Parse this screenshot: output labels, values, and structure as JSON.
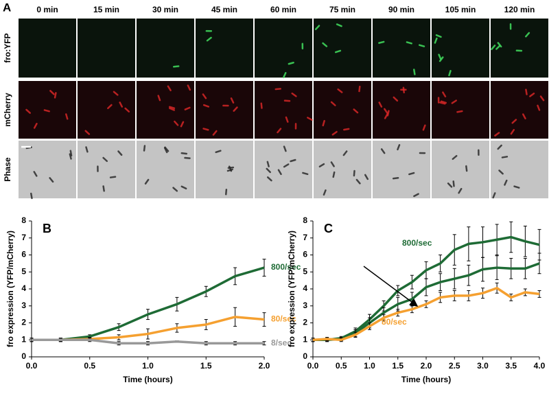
{
  "panel_a": {
    "letter": "A",
    "times": [
      "0 min",
      "15 min",
      "30 min",
      "45 min",
      "60 min",
      "75 min",
      "90 min",
      "105 min",
      "120 min"
    ],
    "rows": [
      "fro:YFP",
      "mCherry",
      "Phase"
    ]
  },
  "chart_data": [
    {
      "type": "line",
      "letter": "B",
      "xlabel": "Time (hours)",
      "ylabel": "fro expression (YFP/mCherry)",
      "x": [
        0,
        0.25,
        0.5,
        0.75,
        1.0,
        1.25,
        1.5,
        1.75,
        2.0
      ],
      "xlim": [
        0,
        2.0
      ],
      "xticks": [
        {
          "value": 0,
          "label": "0.0"
        },
        {
          "value": 0.5,
          "label": "0.5"
        },
        {
          "value": 1,
          "label": "1.0"
        },
        {
          "value": 1.5,
          "label": "1.5"
        },
        {
          "value": 2,
          "label": "2.0"
        }
      ],
      "ylim": [
        0,
        8
      ],
      "yticks": [
        0,
        1,
        2,
        3,
        4,
        5,
        6,
        7,
        8
      ],
      "grid": false,
      "series": [
        {
          "name": "800/sec",
          "color": "#1e6b35",
          "values": [
            1,
            1.0,
            1.2,
            1.75,
            2.5,
            3.1,
            3.85,
            4.75,
            5.25
          ],
          "errors": [
            0.1,
            0.1,
            0.1,
            0.2,
            0.3,
            0.4,
            0.3,
            0.5,
            0.5
          ]
        },
        {
          "name": "80/sec",
          "color": "#f5a030",
          "values": [
            1,
            1.0,
            1.05,
            1.15,
            1.35,
            1.7,
            1.9,
            2.35,
            2.2
          ],
          "errors": [
            0.1,
            0.1,
            0.1,
            0.15,
            0.3,
            0.25,
            0.3,
            0.55,
            0.4
          ]
        },
        {
          "name": "8/sec",
          "color": "#999999",
          "values": [
            1,
            1,
            1.0,
            0.8,
            0.8,
            0.9,
            0.8,
            0.8,
            0.8
          ],
          "errors": [
            0.1,
            0.1,
            0.1,
            0.1,
            0.1,
            0.05,
            0.1,
            0.1,
            0.1
          ]
        }
      ]
    },
    {
      "type": "line",
      "letter": "C",
      "xlabel": "Time (hours)",
      "ylabel": "fro expression (YFP/mCherry)",
      "x": [
        0,
        0.25,
        0.5,
        0.75,
        1.0,
        1.25,
        1.5,
        1.75,
        2.0,
        2.25,
        2.5,
        2.75,
        3.0,
        3.25,
        3.5,
        3.75,
        4.0
      ],
      "xlim": [
        0,
        4.0
      ],
      "xticks": [
        {
          "value": 0,
          "label": "0.0"
        },
        {
          "value": 0.5,
          "label": "0.5"
        },
        {
          "value": 1,
          "label": "1.0"
        },
        {
          "value": 1.5,
          "label": "1.5"
        },
        {
          "value": 2,
          "label": "2.0"
        },
        {
          "value": 2.5,
          "label": "2.5"
        },
        {
          "value": 3,
          "label": "3.0"
        },
        {
          "value": 3.5,
          "label": "3.5"
        },
        {
          "value": 4,
          "label": "4.0"
        }
      ],
      "ylim": [
        0,
        8
      ],
      "yticks": [
        0,
        1,
        2,
        3,
        4,
        5,
        6,
        7,
        8
      ],
      "grid": false,
      "series": [
        {
          "name": "800/sec",
          "color": "#1e6b35",
          "values": [
            1,
            1,
            1.1,
            1.5,
            2.2,
            3.0,
            3.9,
            4.4,
            5.1,
            5.5,
            6.3,
            6.65,
            6.75,
            6.9,
            7.05,
            6.8,
            6.6
          ],
          "errors": [
            0.1,
            0.1,
            0.1,
            0.2,
            0.3,
            0.3,
            0.3,
            0.4,
            0.5,
            0.5,
            0.9,
            1.0,
            0.9,
            0.9,
            0.9,
            0.9,
            0.9
          ]
        },
        {
          "color": "#1e6b35",
          "values": [
            1,
            1,
            1.05,
            1.4,
            2.0,
            2.6,
            3.1,
            3.4,
            4.1,
            4.4,
            4.6,
            4.8,
            5.15,
            5.25,
            5.2,
            5.2,
            5.5
          ],
          "errors": [
            0.1,
            0.1,
            0.1,
            0.2,
            0.3,
            0.3,
            0.4,
            0.4,
            0.5,
            0.5,
            0.6,
            0.6,
            0.7,
            0.7,
            0.6,
            0.6,
            0.6
          ]
        },
        {
          "name": "80/sec",
          "color": "#f5a030",
          "values": [
            1,
            1.05,
            1.0,
            1.3,
            1.8,
            2.3,
            2.6,
            2.8,
            3.1,
            3.5,
            3.6,
            3.6,
            3.75,
            4.05,
            3.5,
            3.8,
            3.7
          ],
          "errors": [
            0.1,
            0.1,
            0.1,
            0.15,
            0.2,
            0.2,
            0.2,
            0.2,
            0.2,
            0.3,
            0.3,
            0.3,
            0.3,
            0.3,
            0.2,
            0.2,
            0.2
          ]
        }
      ]
    }
  ]
}
